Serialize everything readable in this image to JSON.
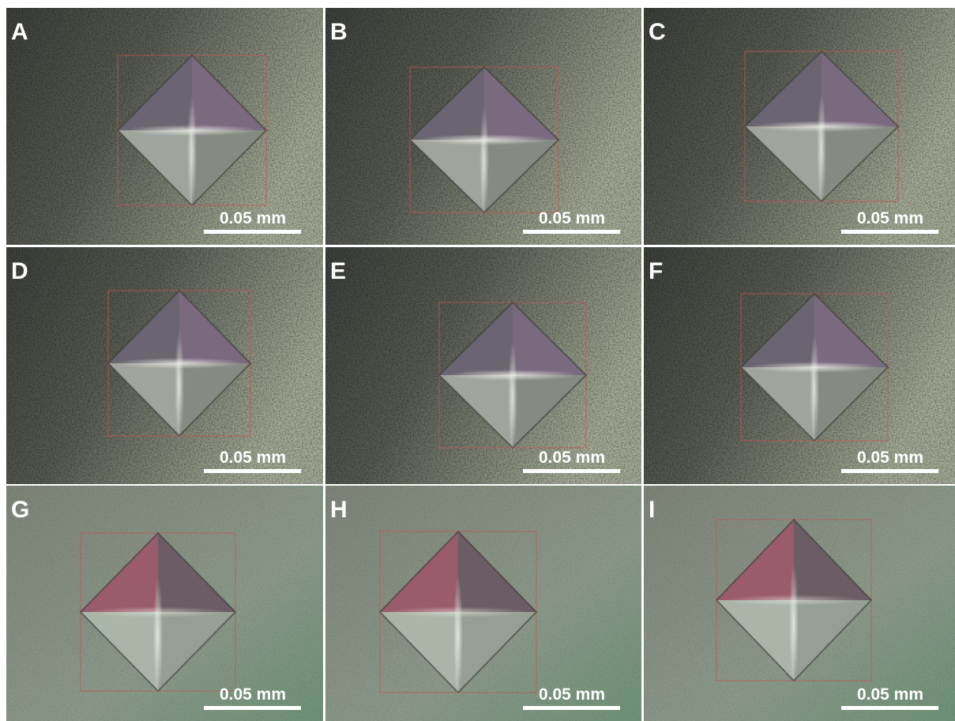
{
  "panels": [
    {
      "label": "A",
      "scale_bar": "0.05 mm"
    },
    {
      "label": "B",
      "scale_bar": "0.05 mm"
    },
    {
      "label": "C",
      "scale_bar": "0.05 mm"
    },
    {
      "label": "D",
      "scale_bar": "0.05 mm"
    },
    {
      "label": "E",
      "scale_bar": "0.05 mm"
    },
    {
      "label": "F",
      "scale_bar": "0.05 mm"
    },
    {
      "label": "G",
      "scale_bar": "0.05 mm"
    },
    {
      "label": "H",
      "scale_bar": "0.05 mm"
    },
    {
      "label": "I",
      "scale_bar": "0.05 mm"
    }
  ]
}
